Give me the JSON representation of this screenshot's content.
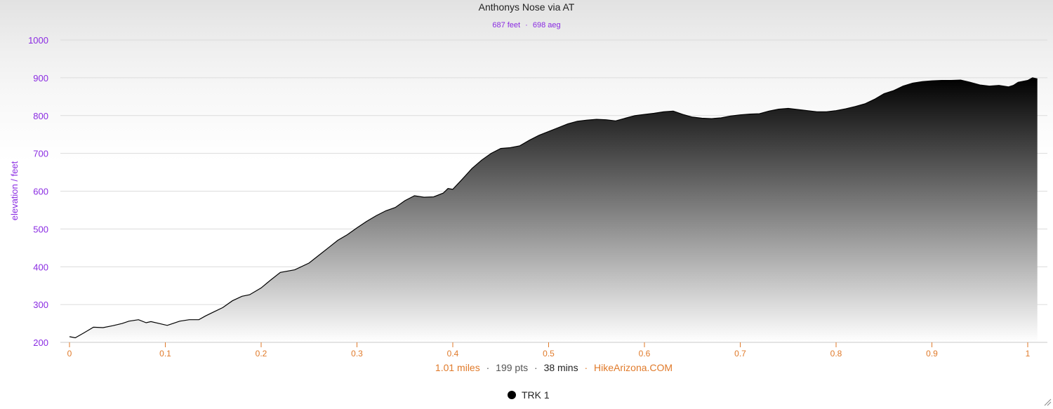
{
  "chart_data": {
    "type": "area",
    "title": "Anthonys Nose via AT",
    "subtitle": {
      "distance_gain": "687 feet",
      "separator": "·",
      "aeg": "698 aeg"
    },
    "ylabel": "elevation / feet",
    "xlabel": "",
    "xlim": [
      0,
      1.01
    ],
    "ylim": [
      200,
      1000
    ],
    "xticks": [
      0,
      0.1,
      0.2,
      0.3,
      0.4,
      0.5,
      0.6,
      0.7,
      0.8,
      0.9,
      1
    ],
    "xtick_labels": [
      "0",
      "0.1",
      "0.2",
      "0.3",
      "0.4",
      "0.5",
      "0.6",
      "0.7",
      "0.8",
      "0.9",
      "1"
    ],
    "yticks": [
      200,
      300,
      400,
      500,
      600,
      700,
      800,
      900,
      1000
    ],
    "ytick_labels": [
      "200",
      "300",
      "400",
      "500",
      "600",
      "700",
      "800",
      "900",
      "1000"
    ],
    "grid": true,
    "fill": "gradient-black-to-white",
    "colors": {
      "purple": "#8a2be2",
      "orange": "#e07a2a",
      "line": "#000000"
    },
    "series": [
      {
        "name": "TRK 1",
        "x": [
          0,
          0.006,
          0.015,
          0.025,
          0.035,
          0.045,
          0.055,
          0.062,
          0.072,
          0.08,
          0.085,
          0.095,
          0.102,
          0.108,
          0.115,
          0.125,
          0.135,
          0.142,
          0.15,
          0.16,
          0.17,
          0.18,
          0.188,
          0.2,
          0.21,
          0.22,
          0.235,
          0.25,
          0.26,
          0.27,
          0.28,
          0.29,
          0.3,
          0.31,
          0.32,
          0.33,
          0.34,
          0.35,
          0.36,
          0.37,
          0.38,
          0.39,
          0.395,
          0.4,
          0.41,
          0.42,
          0.43,
          0.44,
          0.45,
          0.46,
          0.47,
          0.48,
          0.49,
          0.5,
          0.51,
          0.52,
          0.53,
          0.54,
          0.55,
          0.56,
          0.57,
          0.58,
          0.59,
          0.6,
          0.61,
          0.62,
          0.63,
          0.64,
          0.65,
          0.66,
          0.67,
          0.68,
          0.69,
          0.7,
          0.71,
          0.72,
          0.73,
          0.74,
          0.75,
          0.76,
          0.77,
          0.78,
          0.79,
          0.8,
          0.81,
          0.82,
          0.83,
          0.84,
          0.85,
          0.86,
          0.87,
          0.88,
          0.89,
          0.9,
          0.91,
          0.92,
          0.93,
          0.94,
          0.95,
          0.96,
          0.97,
          0.98,
          0.985,
          0.99,
          1.0,
          1.005,
          1.01
        ],
        "values": [
          215,
          212,
          225,
          240,
          239,
          244,
          250,
          256,
          260,
          252,
          255,
          249,
          245,
          250,
          256,
          260,
          260,
          270,
          280,
          292,
          310,
          322,
          326,
          344,
          365,
          385,
          392,
          410,
          430,
          450,
          470,
          485,
          503,
          520,
          535,
          548,
          557,
          575,
          588,
          584,
          585,
          595,
          607,
          605,
          632,
          660,
          682,
          700,
          713,
          715,
          720,
          735,
          748,
          758,
          768,
          778,
          785,
          788,
          790,
          789,
          786,
          793,
          800,
          803,
          806,
          810,
          812,
          803,
          796,
          793,
          792,
          794,
          799,
          802,
          804,
          805,
          812,
          817,
          819,
          816,
          813,
          810,
          810,
          813,
          818,
          824,
          831,
          843,
          858,
          866,
          878,
          886,
          890,
          892,
          893,
          893,
          894,
          888,
          881,
          878,
          880,
          876,
          880,
          888,
          893,
          900,
          897
        ]
      }
    ],
    "caption": {
      "miles": "1.01 miles",
      "sep": "·",
      "points": "199 pts",
      "time": "38 mins",
      "source": "HikeArizona.COM"
    },
    "legend": {
      "placement": "bottom-center",
      "label": "TRK 1"
    }
  }
}
